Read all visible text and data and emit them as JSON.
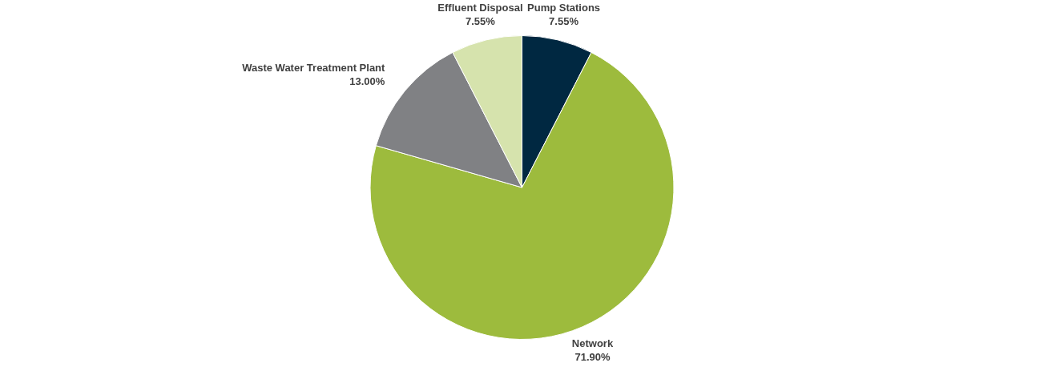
{
  "chart_data": {
    "type": "pie",
    "categories": [
      "Pump Stations",
      "Network",
      "Waste Water Treatment Plant",
      "Effluent Disposal"
    ],
    "values": [
      7.55,
      71.9,
      13.0,
      7.55
    ],
    "value_labels": [
      "7.55%",
      "71.90%",
      "13.00%",
      "7.55%"
    ],
    "colors": [
      "#002841",
      "#9dbb3d",
      "#808184",
      "#d6e3ad"
    ],
    "legend": false
  }
}
